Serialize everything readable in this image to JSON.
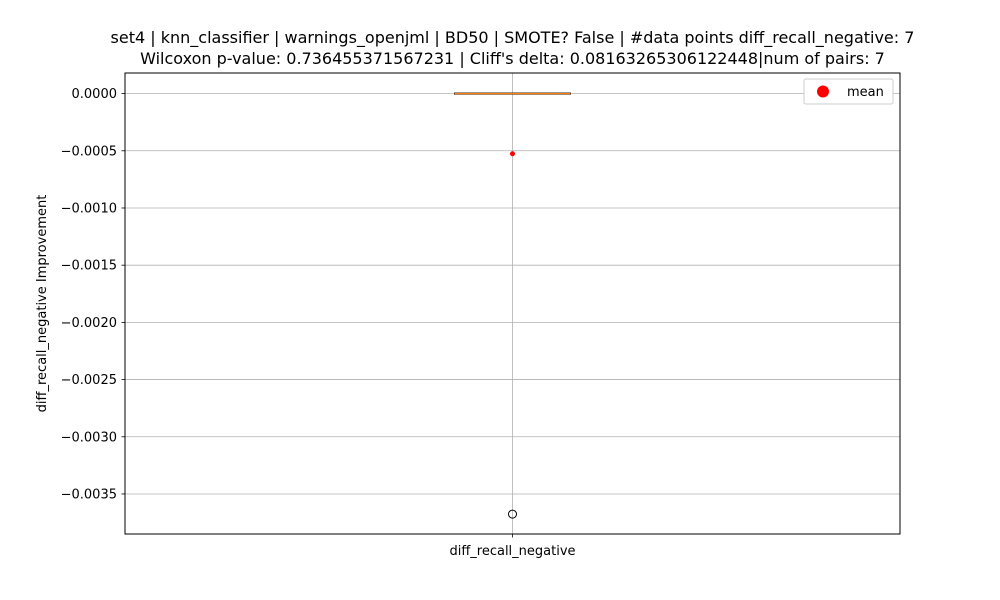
{
  "chart_data": {
    "type": "box",
    "title_line1": "set4 | knn_classifier | warnings_openjml | BD50 | SMOTE? False | #data points diff_recall_negative: 7",
    "title_line2": "Wilcoxon p-value: 0.736455371567231 | Cliff's delta: 0.08163265306122448|num of pairs: 7",
    "xlabel": "",
    "ylabel": "diff_recall_negative Improvement",
    "categories": [
      "diff_recall_negative"
    ],
    "ylim": [
      -0.00385,
      0.00018
    ],
    "y_ticks": [
      0.0,
      -0.0005,
      -0.001,
      -0.0015,
      -0.002,
      -0.0025,
      -0.003,
      -0.0035
    ],
    "y_tick_labels": [
      "0.0000",
      "−0.0005",
      "−0.0010",
      "−0.0015",
      "−0.0020",
      "−0.0025",
      "−0.0030",
      "−0.0035"
    ],
    "grid": true,
    "box": {
      "q1": 0.0,
      "median": 0.0,
      "q3": 0.0,
      "whisker_low": 0.0,
      "whisker_high": 0.0,
      "mean": -0.000526,
      "outliers": [
        -0.003676
      ]
    },
    "legend": {
      "position": "top-right",
      "entries": [
        {
          "label": "mean",
          "color": "#ff0000"
        }
      ]
    },
    "colors": {
      "box_edge": "#000000",
      "median": "#ff7f0e",
      "mean": "#ff0000",
      "grid": "#b0b0b0"
    }
  }
}
